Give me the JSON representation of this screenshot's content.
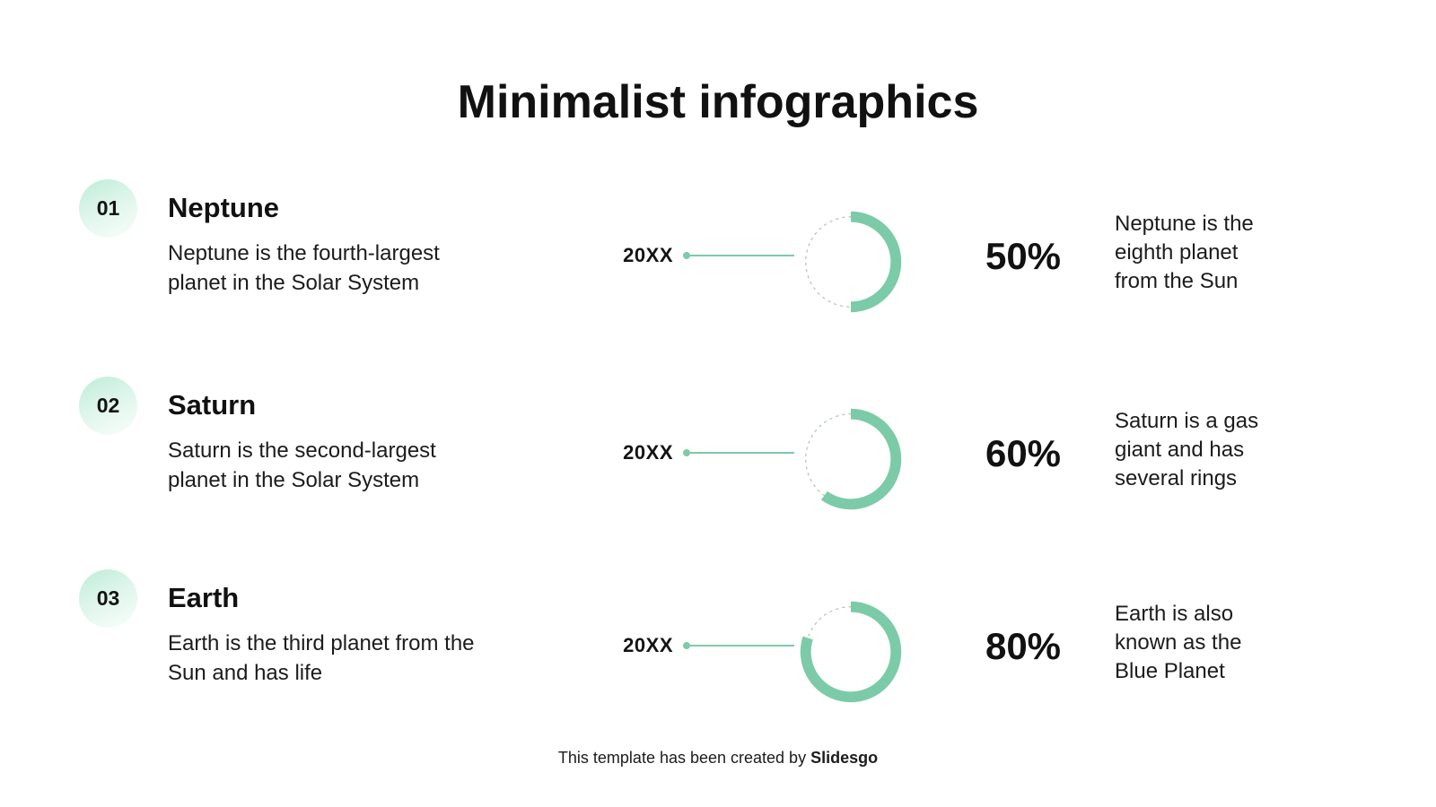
{
  "theme": {
    "accent": "#7ccba8",
    "dashed_ring": "#b5c6bd",
    "badge_gradient_start": "#bdecd8",
    "badge_gradient_end": "#fafefc",
    "text_color": "#111111",
    "background": "#ffffff"
  },
  "title": "Minimalist infographics",
  "rows": [
    {
      "number": "01",
      "title": "Neptune",
      "description": "Neptune is the fourth-largest\nplanet in the Solar System",
      "year": "20XX",
      "percent": 50,
      "percent_label": "50%",
      "fact": "Neptune is the\neighth planet\nfrom the Sun"
    },
    {
      "number": "02",
      "title": "Saturn",
      "description": "Saturn is the second-largest\nplanet in the Solar System",
      "year": "20XX",
      "percent": 60,
      "percent_label": "60%",
      "fact": "Saturn is a gas\ngiant and has\nseveral rings"
    },
    {
      "number": "03",
      "title": "Earth",
      "description": "Earth is the third planet from the\nSun and has life",
      "year": "20XX",
      "percent": 80,
      "percent_label": "80%",
      "fact": "Earth is also\nknown as the\nBlue Planet"
    }
  ],
  "footer": {
    "text": "This template has been created by ",
    "brand": "Slidesgo"
  },
  "chart_data": {
    "type": "pie",
    "subtype": "progress-donut-rings",
    "categories": [
      "Neptune",
      "Saturn",
      "Earth"
    ],
    "values": [
      50,
      60,
      80
    ],
    "units": "%",
    "title": "Minimalist infographics",
    "notes": "Three independent donut progress rings; filled arc starts at 12 o'clock and sweeps clockwise; remainder of ring is a thin dashed circle."
  }
}
